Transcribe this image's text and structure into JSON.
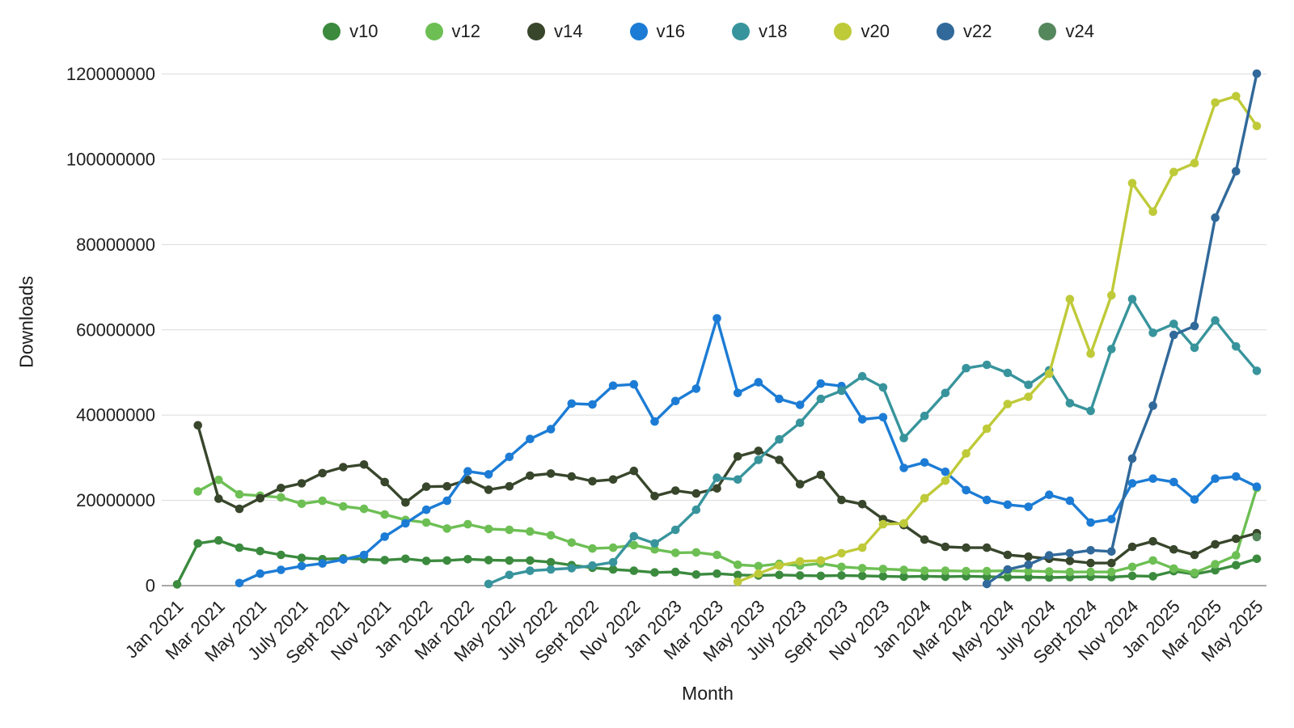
{
  "chart_data": {
    "type": "line",
    "title": "",
    "xlabel": "Month",
    "ylabel": "Downloads",
    "legend_position": "top",
    "grid": "horizontal",
    "unit_multiplier": 1000000,
    "ylim": [
      0,
      120000000
    ],
    "y_ticks": [
      0,
      20000000,
      40000000,
      60000000,
      80000000,
      100000000,
      120000000
    ],
    "x_months_total": 53,
    "x_ticks": [
      {
        "index": 0,
        "label": "Jan 2021"
      },
      {
        "index": 2,
        "label": "Mar 2021"
      },
      {
        "index": 4,
        "label": "May 2021"
      },
      {
        "index": 6,
        "label": "July 2021"
      },
      {
        "index": 8,
        "label": "Sept 2021"
      },
      {
        "index": 10,
        "label": "Nov 2021"
      },
      {
        "index": 12,
        "label": "Jan 2022"
      },
      {
        "index": 14,
        "label": "Mar 2022"
      },
      {
        "index": 16,
        "label": "May 2022"
      },
      {
        "index": 18,
        "label": "July 2022"
      },
      {
        "index": 20,
        "label": "Sept 2022"
      },
      {
        "index": 22,
        "label": "Nov 2022"
      },
      {
        "index": 24,
        "label": "Jan 2023"
      },
      {
        "index": 26,
        "label": "Mar 2023"
      },
      {
        "index": 28,
        "label": "May 2023"
      },
      {
        "index": 30,
        "label": "July 2023"
      },
      {
        "index": 32,
        "label": "Sept 2023"
      },
      {
        "index": 34,
        "label": "Nov 2023"
      },
      {
        "index": 36,
        "label": "Jan 2024"
      },
      {
        "index": 38,
        "label": "Mar 2024"
      },
      {
        "index": 40,
        "label": "May 2024"
      },
      {
        "index": 42,
        "label": "July 2024"
      },
      {
        "index": 44,
        "label": "Sept 2024"
      },
      {
        "index": 46,
        "label": "Nov 2024"
      },
      {
        "index": 48,
        "label": "Jan 2025"
      },
      {
        "index": 50,
        "label": "Mar 2025"
      },
      {
        "index": 52,
        "label": "May 2025"
      }
    ],
    "series": [
      {
        "name": "v10",
        "color": "#3b8a3e",
        "start_index": 0,
        "values_millions": [
          0.3,
          9.9,
          10.6,
          8.9,
          8.1,
          7.2,
          6.5,
          6.2,
          6.4,
          6.2,
          6.0,
          6.3,
          5.8,
          5.9,
          6.2,
          6.0,
          5.9,
          5.9,
          5.5,
          4.8,
          4.2,
          3.8,
          3.5,
          3.1,
          3.2,
          2.6,
          2.8,
          2.5,
          2.4,
          2.5,
          2.4,
          2.3,
          2.4,
          2.3,
          2.2,
          2.1,
          2.2,
          2.1,
          2.2,
          2.1,
          2.0,
          2.0,
          1.9,
          2.0,
          2.1,
          2.0,
          2.3,
          2.2,
          3.4,
          2.7,
          3.6,
          4.8,
          6.3
        ]
      },
      {
        "name": "v12",
        "color": "#6dbf54",
        "start_index": 1,
        "values_millions": [
          22.1,
          24.8,
          21.4,
          21.1,
          20.7,
          19.2,
          19.9,
          18.6,
          18.0,
          16.7,
          15.4,
          14.8,
          13.4,
          14.4,
          13.3,
          13.1,
          12.7,
          11.8,
          10.1,
          8.7,
          8.9,
          9.5,
          8.5,
          7.7,
          7.8,
          7.2,
          4.9,
          4.6,
          5.1,
          4.7,
          5.2,
          4.4,
          4.1,
          3.9,
          3.7,
          3.5,
          3.5,
          3.4,
          3.4,
          3.5,
          3.4,
          3.3,
          3.2,
          3.2,
          3.2,
          4.4,
          5.9,
          4.0,
          3.0,
          5.0,
          7.1,
          22.9
        ]
      },
      {
        "name": "v14",
        "color": "#38462c",
        "start_index": 1,
        "values_millions": [
          37.6,
          20.4,
          18.0,
          20.5,
          22.9,
          24.0,
          26.4,
          27.8,
          28.4,
          24.3,
          19.5,
          23.2,
          23.3,
          24.8,
          22.5,
          23.3,
          25.8,
          26.3,
          25.6,
          24.5,
          24.9,
          26.9,
          21.0,
          22.3,
          21.6,
          22.8,
          30.3,
          31.6,
          29.5,
          23.8,
          26.0,
          20.1,
          19.1,
          15.6,
          14.2,
          10.8,
          9.1,
          8.9,
          8.9,
          7.2,
          6.8,
          6.3,
          5.8,
          5.3,
          5.3,
          9.1,
          10.4,
          8.5,
          7.2,
          9.7,
          11.0,
          12.3
        ]
      },
      {
        "name": "v16",
        "color": "#1c7cd5",
        "start_index": 3,
        "values_millions": [
          0.6,
          2.8,
          3.7,
          4.6,
          5.2,
          6.1,
          7.2,
          11.5,
          14.6,
          17.8,
          19.9,
          26.8,
          26.1,
          30.2,
          34.4,
          36.7,
          42.7,
          42.5,
          46.9,
          47.2,
          38.5,
          43.3,
          46.2,
          62.7,
          45.2,
          47.7,
          43.8,
          42.4,
          47.4,
          46.8,
          39.0,
          39.5,
          27.6,
          28.9,
          26.7,
          22.4,
          20.1,
          19.0,
          18.5,
          21.3,
          19.9,
          14.8,
          15.6,
          24.0,
          25.1,
          24.3,
          20.2,
          25.1,
          25.6,
          23.2
        ]
      },
      {
        "name": "v18",
        "color": "#38949c",
        "start_index": 15,
        "values_millions": [
          0.4,
          2.5,
          3.5,
          3.8,
          4.1,
          4.7,
          5.5,
          11.6,
          9.9,
          13.1,
          17.8,
          25.3,
          24.9,
          29.5,
          34.3,
          38.2,
          43.8,
          45.7,
          49.1,
          46.5,
          34.6,
          39.8,
          45.2,
          51.0,
          51.8,
          49.9,
          47.1,
          50.5,
          42.8,
          41.0,
          55.5,
          67.2,
          59.3,
          61.4,
          55.8,
          62.2,
          56.1,
          50.4
        ]
      },
      {
        "name": "v20",
        "color": "#bfca39",
        "start_index": 27,
        "values_millions": [
          0.9,
          2.8,
          4.7,
          5.7,
          5.9,
          7.6,
          8.9,
          14.4,
          14.6,
          20.5,
          24.6,
          31.0,
          36.8,
          42.6,
          44.3,
          49.7,
          67.2,
          54.4,
          68.1,
          94.4,
          87.7,
          97.0,
          99.1,
          113.3,
          114.8,
          107.8
        ]
      },
      {
        "name": "v22",
        "color": "#31699a",
        "start_index": 39,
        "values_millions": [
          0.4,
          3.8,
          4.9,
          7.1,
          7.6,
          8.3,
          8.0,
          29.8,
          42.2,
          58.8,
          60.9,
          86.3,
          97.2,
          120.1
        ]
      },
      {
        "name": "v24",
        "color": "#55875d",
        "start_index": 52,
        "values_millions": [
          11.4
        ]
      }
    ],
    "style": {
      "grid_color": "#dcdcdc",
      "axis_color": "#8c8c8c",
      "text_color": "#1f1f1f",
      "background": "#ffffff"
    }
  }
}
